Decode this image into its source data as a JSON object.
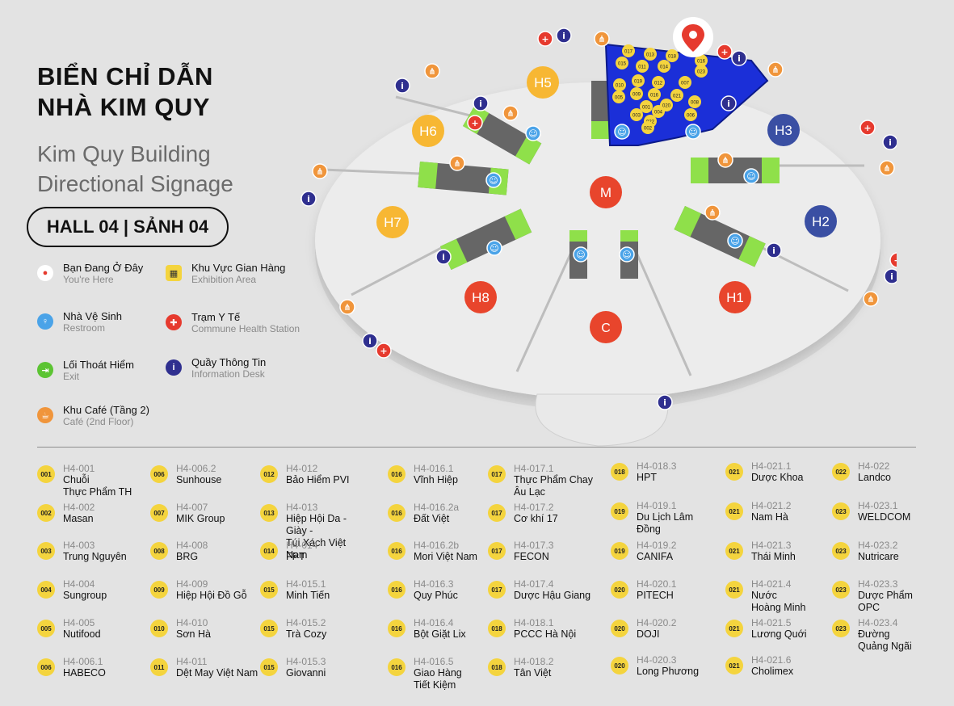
{
  "title_vn_line1": "BIỂN CHỈ DẪN",
  "title_vn_line2": "NHÀ KIM QUY",
  "title_en_line1": "Kim Quy Building",
  "title_en_line2": "Directional Signage",
  "hall_label": "HALL 04 | SẢNH 04",
  "legend": [
    {
      "vn": "Bạn Đang Ở Đây",
      "en": "You're Here",
      "icon": "location-pin-icon",
      "color": "#e63a2e"
    },
    {
      "vn": "Khu Vực Gian Hàng",
      "en": "Exhibition Area",
      "icon": "exhibition-booth-icon",
      "color": "#f4d43e"
    },
    {
      "vn": "Nhà Vệ Sinh",
      "en": "Restroom",
      "icon": "restroom-icon",
      "color": "#4aa3e8"
    },
    {
      "vn": "Trạm Y Tế",
      "en": "Commune Health Station",
      "icon": "medical-cross-icon",
      "color": "#e63a2e"
    },
    {
      "vn": "Lối Thoát Hiểm",
      "en": "Exit",
      "icon": "exit-icon",
      "color": "#5cc433"
    },
    {
      "vn": "Quầy Thông Tin",
      "en": "Information Desk",
      "icon": "info-icon",
      "color": "#2f2f8f"
    },
    {
      "vn": "Khu Café (Tầng 2)",
      "en": "Café (2nd Floor)",
      "icon": "cafe-icon",
      "color": "#f0953b"
    }
  ],
  "map": {
    "halls": [
      {
        "label": "H5",
        "color": "#f7b733"
      },
      {
        "label": "H6",
        "color": "#f7b733"
      },
      {
        "label": "H7",
        "color": "#f7b733"
      },
      {
        "label": "H3",
        "color": "#3a4fa3"
      },
      {
        "label": "H2",
        "color": "#3a4fa3"
      },
      {
        "label": "H1",
        "color": "#e8452c"
      },
      {
        "label": "H8",
        "color": "#e8452c"
      },
      {
        "label": "M",
        "color": "#e8452c"
      },
      {
        "label": "C",
        "color": "#e8452c"
      }
    ],
    "booths": [
      "017",
      "013",
      "018",
      "016",
      "015",
      "011",
      "014",
      "023",
      "010",
      "019",
      "012",
      "007",
      "009",
      "016",
      "021",
      "008",
      "020",
      "003",
      "022",
      "006",
      "005",
      "004",
      "001",
      "002"
    ]
  },
  "directory": [
    {
      "badge": "001",
      "code": "H4-001",
      "name": "Chuỗi\nThực Phẩm TH"
    },
    {
      "badge": "002",
      "code": "H4-002",
      "name": "Masan"
    },
    {
      "badge": "003",
      "code": "H4-003",
      "name": "Trung Nguyên"
    },
    {
      "badge": "004",
      "code": "H4-004",
      "name": "Sungroup"
    },
    {
      "badge": "005",
      "code": "H4-005",
      "name": "Nutifood"
    },
    {
      "badge": "006",
      "code": "H4-006.1",
      "name": "HABECO"
    },
    {
      "badge": "006",
      "code": "H4-006.2",
      "name": "Sunhouse"
    },
    {
      "badge": "007",
      "code": "H4-007",
      "name": "MIK Group"
    },
    {
      "badge": "008",
      "code": "H4-008",
      "name": "BRG"
    },
    {
      "badge": "009",
      "code": "H4-009",
      "name": "Hiệp Hội Đồ Gỗ"
    },
    {
      "badge": "010",
      "code": "H4-010",
      "name": "Sơn Hà"
    },
    {
      "badge": "011",
      "code": "H4-011",
      "name": "Dệt May Việt Nam"
    },
    {
      "badge": "012",
      "code": "H4-012",
      "name": "Bảo Hiểm PVI"
    },
    {
      "badge": "013",
      "code": "H4-013",
      "name": "Hiệp Hội Da - Giày -\nTúi Xách Việt Nam"
    },
    {
      "badge": "014",
      "code": "H4-014",
      "name": "FPT"
    },
    {
      "badge": "015",
      "code": "H4-015.1",
      "name": "Minh Tiến"
    },
    {
      "badge": "015",
      "code": "H4-015.2",
      "name": "Trà Cozy"
    },
    {
      "badge": "015",
      "code": "H4-015.3",
      "name": "Giovanni"
    },
    {
      "badge": "016",
      "code": "H4-016.1",
      "name": "Vĩnh Hiệp"
    },
    {
      "badge": "016",
      "code": "H4-016.2a",
      "name": "Đất Việt"
    },
    {
      "badge": "016",
      "code": "H4-016.2b",
      "name": "Mori Việt Nam"
    },
    {
      "badge": "016",
      "code": "H4-016.3",
      "name": "Quy Phúc"
    },
    {
      "badge": "016",
      "code": "H4-016.4",
      "name": "Bột Giặt Lix"
    },
    {
      "badge": "016",
      "code": "H4-016.5",
      "name": "Giao Hàng\nTiết Kiệm"
    },
    {
      "badge": "017",
      "code": "H4-017.1",
      "name": "Thực Phẩm Chay\nÂu Lạc"
    },
    {
      "badge": "017",
      "code": "H4-017.2",
      "name": "Cơ khí 17"
    },
    {
      "badge": "017",
      "code": "H4-017.3",
      "name": "FECON"
    },
    {
      "badge": "017",
      "code": "H4-017.4",
      "name": "Dược Hậu Giang"
    },
    {
      "badge": "018",
      "code": "H4-018.1",
      "name": "PCCC Hà Nội"
    },
    {
      "badge": "018",
      "code": "H4-018.2",
      "name": "Tân Việt"
    },
    {
      "badge": "018",
      "code": "H4-018.3",
      "name": "HPT"
    },
    {
      "badge": "019",
      "code": "H4-019.1",
      "name": "Du Lịch Lâm Đồng"
    },
    {
      "badge": "019",
      "code": "H4-019.2",
      "name": "CANIFA"
    },
    {
      "badge": "020",
      "code": "H4-020.1",
      "name": "PITECH"
    },
    {
      "badge": "020",
      "code": "H4-020.2",
      "name": "DOJI"
    },
    {
      "badge": "020",
      "code": "H4-020.3",
      "name": "Long Phương"
    },
    {
      "badge": "021",
      "code": "H4-021.1",
      "name": "Dược Khoa"
    },
    {
      "badge": "021",
      "code": "H4-021.2",
      "name": "Nam Hà"
    },
    {
      "badge": "021",
      "code": "H4-021.3",
      "name": "Thái Minh"
    },
    {
      "badge": "021",
      "code": "H4-021.4",
      "name": "Nước\nHoàng Minh"
    },
    {
      "badge": "021",
      "code": "H4-021.5",
      "name": "Lương Quới"
    },
    {
      "badge": "021",
      "code": "H4-021.6",
      "name": "Cholimex"
    },
    {
      "badge": "022",
      "code": "H4-022",
      "name": "Landco"
    },
    {
      "badge": "023",
      "code": "H4-023.1",
      "name": "WELDCOM"
    },
    {
      "badge": "023",
      "code": "H4-023.2",
      "name": "Nutricare"
    },
    {
      "badge": "023",
      "code": "H4-023.3",
      "name": "Dược Phẩm\nOPC"
    },
    {
      "badge": "023",
      "code": "H4-023.4",
      "name": "Đường\nQuảng Ngãi"
    }
  ]
}
